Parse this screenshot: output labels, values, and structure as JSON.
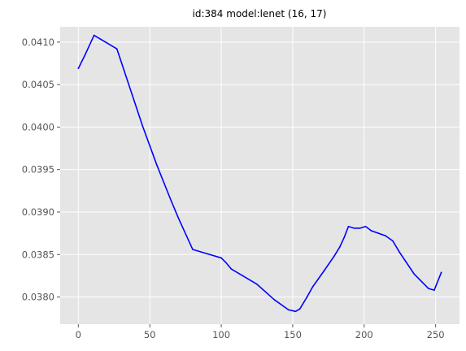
{
  "chart_data": {
    "type": "line",
    "title": "id:384 model:lenet (16, 17)",
    "xlabel": "",
    "ylabel": "",
    "xlim": [
      -12.7,
      266.7
    ],
    "ylim": [
      0.03768,
      0.04118
    ],
    "grid": true,
    "legend": "none",
    "xticks": [
      0,
      50,
      100,
      150,
      200,
      250
    ],
    "xtick_labels": [
      "0",
      "50",
      "100",
      "150",
      "200",
      "250"
    ],
    "yticks": [
      0.038,
      0.0385,
      0.039,
      0.0395,
      0.04,
      0.0405,
      0.041
    ],
    "ytick_labels": [
      "0.0380",
      "0.0385",
      "0.0390",
      "0.0395",
      "0.0400",
      "0.0405",
      "0.0410"
    ],
    "series": [
      {
        "color": "#0000ff",
        "x": [
          0,
          5,
          11,
          27,
          45,
          55,
          65,
          70,
          80,
          90,
          100,
          103,
          107,
          125,
          137,
          147,
          152,
          155,
          160,
          164,
          172,
          179,
          183,
          186,
          189,
          193,
          197,
          201,
          205,
          210,
          215,
          220,
          225,
          235,
          245,
          249,
          254
        ],
        "y": [
          0.04069,
          0.04086,
          0.04108,
          0.04092,
          0.04001,
          0.03955,
          0.03913,
          0.03893,
          0.03856,
          0.03851,
          0.03846,
          0.03841,
          0.03833,
          0.03815,
          0.03797,
          0.03785,
          0.03783,
          0.03786,
          0.038,
          0.03812,
          0.03831,
          0.03848,
          0.03859,
          0.0387,
          0.03883,
          0.03881,
          0.03881,
          0.03883,
          0.03878,
          0.03875,
          0.03872,
          0.03866,
          0.03852,
          0.03827,
          0.0381,
          0.03808,
          0.03829
        ]
      }
    ]
  }
}
